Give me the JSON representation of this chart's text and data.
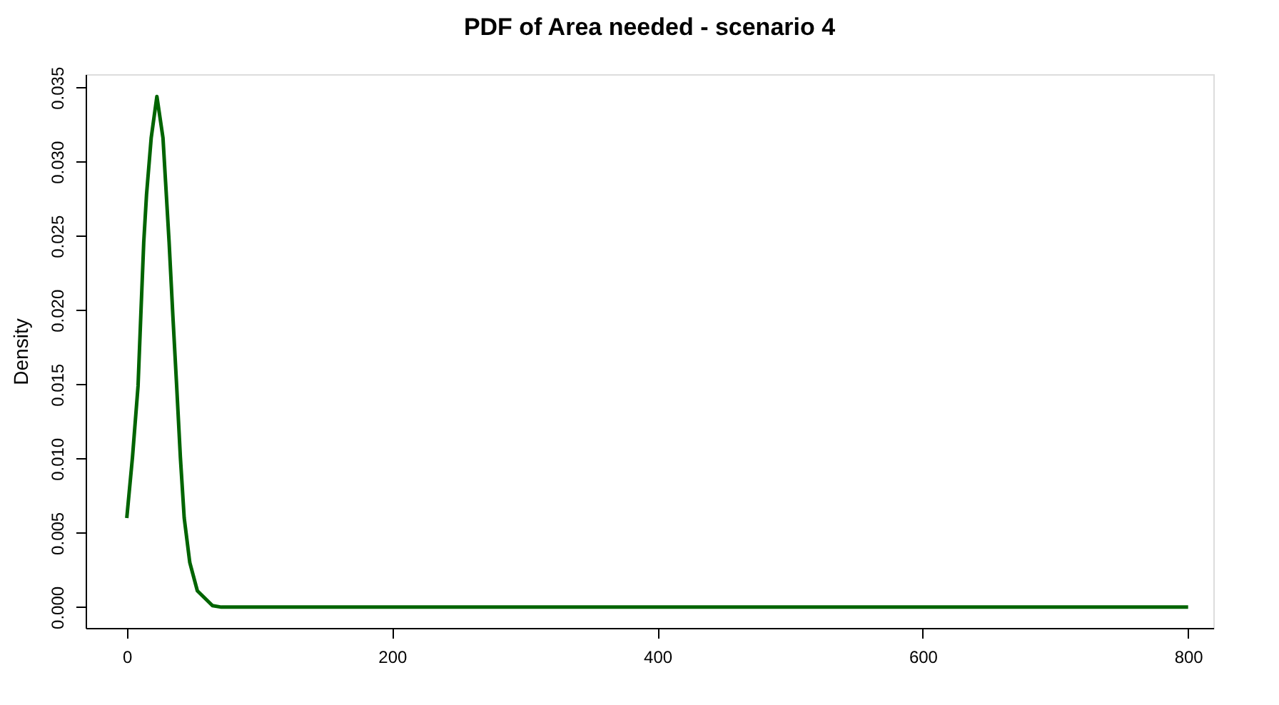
{
  "chart_data": {
    "type": "line",
    "title": "PDF of Area needed - scenario 4",
    "ylabel": "Density",
    "x": [
      0,
      4.3,
      8.5,
      10.6,
      12.8,
      14.9,
      18.4,
      22.7,
      27.3,
      29.8,
      31.9,
      34.7,
      37.6,
      40.4,
      43.3,
      47.5,
      53.2,
      64.6,
      71.3,
      200,
      400,
      600,
      800
    ],
    "series": [
      {
        "color": "#006400",
        "values": [
          0.006,
          0.0101,
          0.0149,
          0.0197,
          0.0246,
          0.0278,
          0.0316,
          0.0344,
          0.0316,
          0.0278,
          0.0246,
          0.0197,
          0.0149,
          0.0101,
          0.006,
          0.003,
          0.0011,
          0.0001,
          0,
          0,
          0,
          0,
          0
        ]
      }
    ],
    "xlim": [
      -31,
      819
    ],
    "xticks": [
      0,
      200,
      400,
      600,
      800
    ],
    "ylim": [
      -0.0014,
      0.0359
    ],
    "yticks": [
      {
        "value": 0,
        "label": "0.000"
      },
      {
        "value": 0.005,
        "label": "0.005"
      },
      {
        "value": 0.01,
        "label": "0.010"
      },
      {
        "value": 0.015,
        "label": "0.015"
      },
      {
        "value": 0.02,
        "label": "0.020"
      },
      {
        "value": 0.025,
        "label": "0.025"
      },
      {
        "value": 0.03,
        "label": "0.030"
      },
      {
        "value": 0.035,
        "label": "0.035"
      }
    ],
    "grid": false,
    "line_style": "solid"
  }
}
